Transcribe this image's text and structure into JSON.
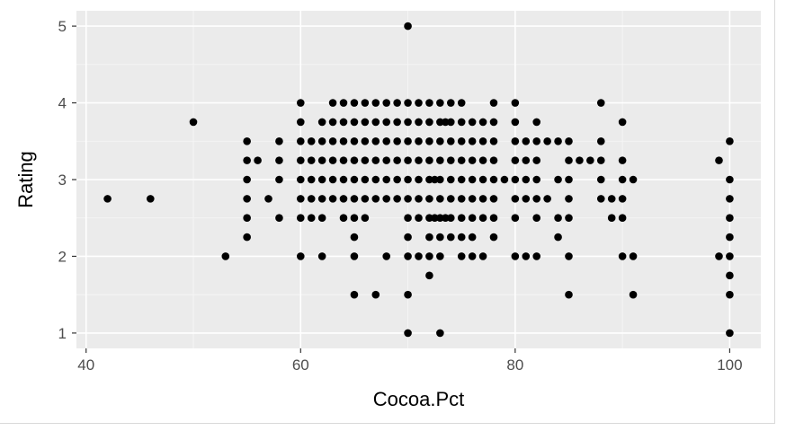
{
  "chart_data": {
    "type": "scatter",
    "title": "",
    "xlabel": "Cocoa.Pct",
    "ylabel": "Rating",
    "xlim": [
      39.1,
      102.9
    ],
    "ylim": [
      0.8,
      5.2
    ],
    "x_ticks": [
      40,
      60,
      80,
      100
    ],
    "x_tick_labels": [
      "40",
      "60",
      "80",
      "100"
    ],
    "y_ticks": [
      1,
      2,
      3,
      4,
      5
    ],
    "y_tick_labels": [
      "1",
      "2",
      "3",
      "4",
      "5"
    ],
    "grid": true,
    "legend": "none",
    "colors": {
      "panel": "#ebebeb",
      "grid_major": "#ffffff",
      "point": "#000000",
      "tick_text": "#4d4d4d"
    },
    "points": [
      {
        "x": 42,
        "y": 2.75
      },
      {
        "x": 46,
        "y": 2.75
      },
      {
        "x": 50,
        "y": 3.75
      },
      {
        "x": 53,
        "y": 2
      },
      {
        "x": 55,
        "y": 3.5
      },
      {
        "x": 55,
        "y": 3.25
      },
      {
        "x": 55,
        "y": 3
      },
      {
        "x": 55,
        "y": 2.75
      },
      {
        "x": 55,
        "y": 2.5
      },
      {
        "x": 55,
        "y": 2.25
      },
      {
        "x": 56,
        "y": 3.25
      },
      {
        "x": 57,
        "y": 2.75
      },
      {
        "x": 58,
        "y": 3.5
      },
      {
        "x": 58,
        "y": 3.25
      },
      {
        "x": 58,
        "y": 3
      },
      {
        "x": 58,
        "y": 2.5
      },
      {
        "x": 60,
        "y": 4
      },
      {
        "x": 60,
        "y": 3.75
      },
      {
        "x": 60,
        "y": 3.5
      },
      {
        "x": 60,
        "y": 3.25
      },
      {
        "x": 60,
        "y": 3
      },
      {
        "x": 60,
        "y": 2.75
      },
      {
        "x": 60,
        "y": 2.5
      },
      {
        "x": 60,
        "y": 2
      },
      {
        "x": 61,
        "y": 3.5
      },
      {
        "x": 61,
        "y": 3.25
      },
      {
        "x": 61,
        "y": 3
      },
      {
        "x": 61,
        "y": 2.75
      },
      {
        "x": 61,
        "y": 2.5
      },
      {
        "x": 62,
        "y": 3.75
      },
      {
        "x": 62,
        "y": 3.5
      },
      {
        "x": 62,
        "y": 3.25
      },
      {
        "x": 62,
        "y": 3
      },
      {
        "x": 62,
        "y": 2.75
      },
      {
        "x": 62,
        "y": 2.5
      },
      {
        "x": 62,
        "y": 2
      },
      {
        "x": 63,
        "y": 4
      },
      {
        "x": 63,
        "y": 3.75
      },
      {
        "x": 63,
        "y": 3.5
      },
      {
        "x": 63,
        "y": 3.25
      },
      {
        "x": 63,
        "y": 3
      },
      {
        "x": 63,
        "y": 2.75
      },
      {
        "x": 64,
        "y": 4
      },
      {
        "x": 64,
        "y": 3.75
      },
      {
        "x": 64,
        "y": 3.5
      },
      {
        "x": 64,
        "y": 3.25
      },
      {
        "x": 64,
        "y": 3
      },
      {
        "x": 64,
        "y": 2.75
      },
      {
        "x": 64,
        "y": 2.5
      },
      {
        "x": 65,
        "y": 4
      },
      {
        "x": 65,
        "y": 3.75
      },
      {
        "x": 65,
        "y": 3.5
      },
      {
        "x": 65,
        "y": 3.25
      },
      {
        "x": 65,
        "y": 3
      },
      {
        "x": 65,
        "y": 2.75
      },
      {
        "x": 65,
        "y": 2.5
      },
      {
        "x": 65,
        "y": 2.25
      },
      {
        "x": 65,
        "y": 2
      },
      {
        "x": 65,
        "y": 1.5
      },
      {
        "x": 66,
        "y": 4
      },
      {
        "x": 66,
        "y": 3.75
      },
      {
        "x": 66,
        "y": 3.5
      },
      {
        "x": 66,
        "y": 3.25
      },
      {
        "x": 66,
        "y": 3
      },
      {
        "x": 66,
        "y": 2.75
      },
      {
        "x": 66,
        "y": 2.5
      },
      {
        "x": 67,
        "y": 4
      },
      {
        "x": 67,
        "y": 3.75
      },
      {
        "x": 67,
        "y": 3.5
      },
      {
        "x": 67,
        "y": 3.25
      },
      {
        "x": 67,
        "y": 3
      },
      {
        "x": 67,
        "y": 2.75
      },
      {
        "x": 67,
        "y": 1.5
      },
      {
        "x": 68,
        "y": 4
      },
      {
        "x": 68,
        "y": 3.75
      },
      {
        "x": 68,
        "y": 3.5
      },
      {
        "x": 68,
        "y": 3.25
      },
      {
        "x": 68,
        "y": 3
      },
      {
        "x": 68,
        "y": 2.75
      },
      {
        "x": 68,
        "y": 2
      },
      {
        "x": 69,
        "y": 4
      },
      {
        "x": 69,
        "y": 3.75
      },
      {
        "x": 69,
        "y": 3.5
      },
      {
        "x": 69,
        "y": 3.25
      },
      {
        "x": 69,
        "y": 3
      },
      {
        "x": 69,
        "y": 2.75
      },
      {
        "x": 70,
        "y": 5
      },
      {
        "x": 70,
        "y": 4
      },
      {
        "x": 70,
        "y": 3.75
      },
      {
        "x": 70,
        "y": 3.5
      },
      {
        "x": 70,
        "y": 3.25
      },
      {
        "x": 70,
        "y": 3
      },
      {
        "x": 70,
        "y": 2.75
      },
      {
        "x": 70,
        "y": 2.5
      },
      {
        "x": 70,
        "y": 2.25
      },
      {
        "x": 70,
        "y": 2
      },
      {
        "x": 70,
        "y": 1.5
      },
      {
        "x": 70,
        "y": 1
      },
      {
        "x": 71,
        "y": 4
      },
      {
        "x": 71,
        "y": 3.75
      },
      {
        "x": 71,
        "y": 3.5
      },
      {
        "x": 71,
        "y": 3.25
      },
      {
        "x": 71,
        "y": 3
      },
      {
        "x": 71,
        "y": 2.75
      },
      {
        "x": 71,
        "y": 2.5
      },
      {
        "x": 71,
        "y": 2
      },
      {
        "x": 72,
        "y": 4
      },
      {
        "x": 72,
        "y": 3.75
      },
      {
        "x": 72,
        "y": 3.5
      },
      {
        "x": 72,
        "y": 3.25
      },
      {
        "x": 72,
        "y": 3
      },
      {
        "x": 72,
        "y": 2.75
      },
      {
        "x": 72,
        "y": 2.5
      },
      {
        "x": 72,
        "y": 2.25
      },
      {
        "x": 72,
        "y": 2
      },
      {
        "x": 72,
        "y": 1.75
      },
      {
        "x": 72.5,
        "y": 3
      },
      {
        "x": 72.5,
        "y": 2.5
      },
      {
        "x": 73,
        "y": 4
      },
      {
        "x": 73,
        "y": 3.75
      },
      {
        "x": 73,
        "y": 3.5
      },
      {
        "x": 73,
        "y": 3.25
      },
      {
        "x": 73,
        "y": 3
      },
      {
        "x": 73,
        "y": 2.75
      },
      {
        "x": 73,
        "y": 2.5
      },
      {
        "x": 73,
        "y": 2.25
      },
      {
        "x": 73,
        "y": 2
      },
      {
        "x": 73,
        "y": 1
      },
      {
        "x": 73.5,
        "y": 3.75
      },
      {
        "x": 73.5,
        "y": 2.5
      },
      {
        "x": 74,
        "y": 4
      },
      {
        "x": 74,
        "y": 3.75
      },
      {
        "x": 74,
        "y": 3.5
      },
      {
        "x": 74,
        "y": 3.25
      },
      {
        "x": 74,
        "y": 3
      },
      {
        "x": 74,
        "y": 2.75
      },
      {
        "x": 74,
        "y": 2.5
      },
      {
        "x": 74,
        "y": 2.25
      },
      {
        "x": 75,
        "y": 4
      },
      {
        "x": 75,
        "y": 3.75
      },
      {
        "x": 75,
        "y": 3.5
      },
      {
        "x": 75,
        "y": 3.25
      },
      {
        "x": 75,
        "y": 3
      },
      {
        "x": 75,
        "y": 2.75
      },
      {
        "x": 75,
        "y": 2.5
      },
      {
        "x": 75,
        "y": 2.25
      },
      {
        "x": 75,
        "y": 2
      },
      {
        "x": 76,
        "y": 3.75
      },
      {
        "x": 76,
        "y": 3.5
      },
      {
        "x": 76,
        "y": 3.25
      },
      {
        "x": 76,
        "y": 3
      },
      {
        "x": 76,
        "y": 2.75
      },
      {
        "x": 76,
        "y": 2.5
      },
      {
        "x": 76,
        "y": 2.25
      },
      {
        "x": 76,
        "y": 2
      },
      {
        "x": 77,
        "y": 3.75
      },
      {
        "x": 77,
        "y": 3.5
      },
      {
        "x": 77,
        "y": 3.25
      },
      {
        "x": 77,
        "y": 3
      },
      {
        "x": 77,
        "y": 2.75
      },
      {
        "x": 77,
        "y": 2.5
      },
      {
        "x": 77,
        "y": 2
      },
      {
        "x": 78,
        "y": 4
      },
      {
        "x": 78,
        "y": 3.75
      },
      {
        "x": 78,
        "y": 3.5
      },
      {
        "x": 78,
        "y": 3.25
      },
      {
        "x": 78,
        "y": 3
      },
      {
        "x": 78,
        "y": 2.75
      },
      {
        "x": 78,
        "y": 2.5
      },
      {
        "x": 78,
        "y": 2.25
      },
      {
        "x": 79,
        "y": 3
      },
      {
        "x": 80,
        "y": 4
      },
      {
        "x": 80,
        "y": 3.75
      },
      {
        "x": 80,
        "y": 3.5
      },
      {
        "x": 80,
        "y": 3.25
      },
      {
        "x": 80,
        "y": 3
      },
      {
        "x": 80,
        "y": 2.75
      },
      {
        "x": 80,
        "y": 2.5
      },
      {
        "x": 80,
        "y": 2
      },
      {
        "x": 81,
        "y": 3.5
      },
      {
        "x": 81,
        "y": 3.25
      },
      {
        "x": 81,
        "y": 3
      },
      {
        "x": 81,
        "y": 2.75
      },
      {
        "x": 81,
        "y": 2
      },
      {
        "x": 82,
        "y": 3.75
      },
      {
        "x": 82,
        "y": 3.5
      },
      {
        "x": 82,
        "y": 3.25
      },
      {
        "x": 82,
        "y": 3
      },
      {
        "x": 82,
        "y": 2.75
      },
      {
        "x": 82,
        "y": 2.5
      },
      {
        "x": 82,
        "y": 2
      },
      {
        "x": 83,
        "y": 3.5
      },
      {
        "x": 83,
        "y": 2.75
      },
      {
        "x": 84,
        "y": 3.5
      },
      {
        "x": 84,
        "y": 3
      },
      {
        "x": 84,
        "y": 2.5
      },
      {
        "x": 84,
        "y": 2.25
      },
      {
        "x": 85,
        "y": 3.5
      },
      {
        "x": 85,
        "y": 3.25
      },
      {
        "x": 85,
        "y": 3
      },
      {
        "x": 85,
        "y": 2.75
      },
      {
        "x": 85,
        "y": 2.5
      },
      {
        "x": 85,
        "y": 2
      },
      {
        "x": 85,
        "y": 1.5
      },
      {
        "x": 86,
        "y": 3.25
      },
      {
        "x": 87,
        "y": 3.25
      },
      {
        "x": 88,
        "y": 4
      },
      {
        "x": 88,
        "y": 3.5
      },
      {
        "x": 88,
        "y": 3.25
      },
      {
        "x": 88,
        "y": 3
      },
      {
        "x": 88,
        "y": 2.75
      },
      {
        "x": 89,
        "y": 2.75
      },
      {
        "x": 89,
        "y": 2.5
      },
      {
        "x": 90,
        "y": 3.75
      },
      {
        "x": 90,
        "y": 3.25
      },
      {
        "x": 90,
        "y": 3
      },
      {
        "x": 90,
        "y": 2.75
      },
      {
        "x": 90,
        "y": 2.5
      },
      {
        "x": 90,
        "y": 2
      },
      {
        "x": 91,
        "y": 3
      },
      {
        "x": 91,
        "y": 2
      },
      {
        "x": 91,
        "y": 1.5
      },
      {
        "x": 99,
        "y": 3.25
      },
      {
        "x": 99,
        "y": 2
      },
      {
        "x": 100,
        "y": 3.5
      },
      {
        "x": 100,
        "y": 3
      },
      {
        "x": 100,
        "y": 2.75
      },
      {
        "x": 100,
        "y": 2.5
      },
      {
        "x": 100,
        "y": 2.25
      },
      {
        "x": 100,
        "y": 2
      },
      {
        "x": 100,
        "y": 1.75
      },
      {
        "x": 100,
        "y": 1.5
      },
      {
        "x": 100,
        "y": 1
      }
    ]
  }
}
